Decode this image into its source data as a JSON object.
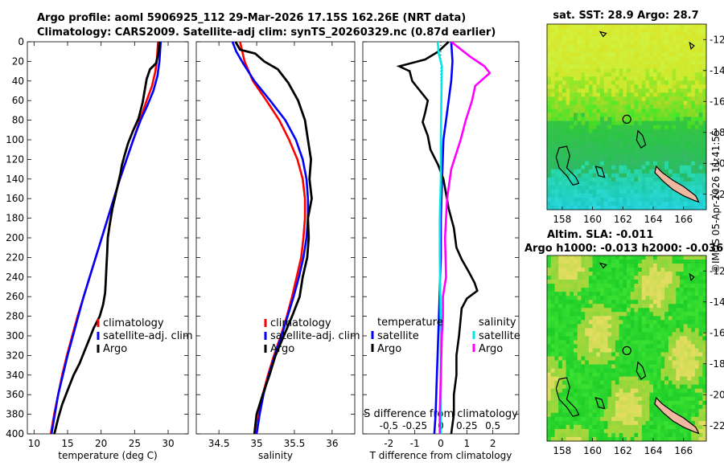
{
  "header": {
    "line1": "Argo profile: aoml 5906925_112 29-Mar-2026 17.15S 162.26E (NRT data)",
    "line2": "Climatology: CARS2009. Satellite-adj clim: synTS_20260329.nc (0.87d earlier)"
  },
  "timestamp": "©IMOS 05-Apr-2026 11:41:55",
  "colors": {
    "climatology": "#ff0000",
    "satellite": "#0000ff",
    "argo": "#000000",
    "sat_salinity": "#00e6e6",
    "argo_salinity": "#ff00ff"
  },
  "chart_data": [
    {
      "type": "line",
      "id": "temperature",
      "xlabel": "temperature (deg C)",
      "ylabel": "",
      "xlim": [
        9,
        33
      ],
      "ylim": [
        0,
        400
      ],
      "xticks": [
        10,
        15,
        20,
        25,
        30
      ],
      "yticks": [
        0,
        20,
        40,
        60,
        80,
        100,
        120,
        140,
        160,
        180,
        200,
        220,
        240,
        260,
        280,
        300,
        320,
        340,
        360,
        380,
        400
      ],
      "legend": [
        "climatology",
        "satellite-adj. clim",
        "Argo"
      ],
      "series": [
        {
          "name": "climatology",
          "color": "red",
          "points": [
            [
              28.5,
              0
            ],
            [
              28.3,
              20
            ],
            [
              28.1,
              30
            ],
            [
              27.6,
              45
            ],
            [
              26.8,
              60
            ],
            [
              25.8,
              80
            ],
            [
              24.8,
              100
            ],
            [
              23.8,
              120
            ],
            [
              22.8,
              140
            ],
            [
              21.9,
              160
            ],
            [
              21.0,
              180
            ],
            [
              20.1,
              200
            ],
            [
              19.2,
              220
            ],
            [
              18.3,
              240
            ],
            [
              17.4,
              260
            ],
            [
              16.5,
              280
            ],
            [
              15.7,
              300
            ],
            [
              14.9,
              320
            ],
            [
              14.2,
              340
            ],
            [
              13.6,
              360
            ],
            [
              13.0,
              380
            ],
            [
              12.5,
              400
            ]
          ]
        },
        {
          "name": "satellite-adj. clim",
          "color": "blue",
          "points": [
            [
              28.9,
              0
            ],
            [
              28.7,
              20
            ],
            [
              28.4,
              35
            ],
            [
              27.8,
              50
            ],
            [
              26.9,
              65
            ],
            [
              25.9,
              80
            ],
            [
              24.8,
              100
            ],
            [
              23.8,
              120
            ],
            [
              22.8,
              140
            ],
            [
              21.9,
              160
            ],
            [
              21.0,
              180
            ],
            [
              20.1,
              200
            ],
            [
              19.2,
              220
            ],
            [
              18.3,
              240
            ],
            [
              17.4,
              260
            ],
            [
              16.6,
              280
            ],
            [
              15.8,
              300
            ],
            [
              15.0,
              320
            ],
            [
              14.3,
              340
            ],
            [
              13.6,
              360
            ],
            [
              13.1,
              380
            ],
            [
              12.6,
              400
            ]
          ]
        },
        {
          "name": "Argo",
          "color": "black",
          "points": [
            [
              28.7,
              0
            ],
            [
              28.6,
              10
            ],
            [
              28.2,
              22
            ],
            [
              27.3,
              28
            ],
            [
              26.8,
              38
            ],
            [
              26.5,
              50
            ],
            [
              26.2,
              62
            ],
            [
              25.6,
              78
            ],
            [
              24.7,
              92
            ],
            [
              24.0,
              104
            ],
            [
              23.5,
              116
            ],
            [
              23.1,
              126
            ],
            [
              22.9,
              134
            ],
            [
              22.5,
              146
            ],
            [
              22.1,
              158
            ],
            [
              21.7,
              170
            ],
            [
              21.3,
              186
            ],
            [
              21.0,
              200
            ],
            [
              20.9,
              216
            ],
            [
              20.8,
              230
            ],
            [
              20.7,
              244
            ],
            [
              20.6,
              256
            ],
            [
              20.3,
              268
            ],
            [
              19.8,
              280
            ],
            [
              18.9,
              292
            ],
            [
              18.2,
              304
            ],
            [
              17.5,
              316
            ],
            [
              16.8,
              328
            ],
            [
              15.9,
              340
            ],
            [
              15.1,
              354
            ],
            [
              14.2,
              370
            ],
            [
              13.6,
              384
            ],
            [
              13.1,
              398
            ],
            [
              13.0,
              400
            ]
          ]
        }
      ]
    },
    {
      "type": "line",
      "id": "salinity",
      "xlabel": "salinity",
      "ylabel": "",
      "xlim": [
        34.2,
        36.3
      ],
      "ylim": [
        0,
        400
      ],
      "xticks": [
        34.5,
        35,
        35.5,
        36
      ],
      "yticks": [],
      "legend": [
        "climatology",
        "satellite-adj. clim",
        "Argo"
      ],
      "series": [
        {
          "name": "climatology",
          "color": "red",
          "points": [
            [
              34.78,
              0
            ],
            [
              34.84,
              20
            ],
            [
              34.95,
              40
            ],
            [
              35.13,
              60
            ],
            [
              35.3,
              80
            ],
            [
              35.43,
              100
            ],
            [
              35.54,
              120
            ],
            [
              35.61,
              140
            ],
            [
              35.64,
              160
            ],
            [
              35.64,
              180
            ],
            [
              35.62,
              200
            ],
            [
              35.59,
              220
            ],
            [
              35.53,
              240
            ],
            [
              35.47,
              260
            ],
            [
              35.4,
              280
            ],
            [
              35.32,
              300
            ],
            [
              35.23,
              320
            ],
            [
              35.15,
              340
            ],
            [
              35.08,
              360
            ],
            [
              35.03,
              380
            ],
            [
              35.0,
              400
            ]
          ]
        },
        {
          "name": "satellite-adj. clim",
          "color": "blue",
          "points": [
            [
              34.68,
              0
            ],
            [
              34.73,
              10
            ],
            [
              34.82,
              22
            ],
            [
              34.97,
              40
            ],
            [
              35.18,
              60
            ],
            [
              35.38,
              80
            ],
            [
              35.52,
              100
            ],
            [
              35.61,
              120
            ],
            [
              35.66,
              140
            ],
            [
              35.68,
              160
            ],
            [
              35.68,
              180
            ],
            [
              35.66,
              200
            ],
            [
              35.62,
              220
            ],
            [
              35.56,
              240
            ],
            [
              35.49,
              260
            ],
            [
              35.41,
              280
            ],
            [
              35.33,
              300
            ],
            [
              35.24,
              320
            ],
            [
              35.16,
              340
            ],
            [
              35.09,
              360
            ],
            [
              35.04,
              380
            ],
            [
              35.0,
              400
            ]
          ]
        },
        {
          "name": "Argo",
          "color": "black",
          "points": [
            [
              34.72,
              0
            ],
            [
              34.78,
              8
            ],
            [
              34.98,
              12
            ],
            [
              35.1,
              20
            ],
            [
              35.28,
              28
            ],
            [
              35.42,
              42
            ],
            [
              35.55,
              60
            ],
            [
              35.64,
              80
            ],
            [
              35.68,
              100
            ],
            [
              35.72,
              120
            ],
            [
              35.7,
              140
            ],
            [
              35.73,
              160
            ],
            [
              35.68,
              180
            ],
            [
              35.69,
              200
            ],
            [
              35.67,
              220
            ],
            [
              35.61,
              240
            ],
            [
              35.57,
              260
            ],
            [
              35.47,
              280
            ],
            [
              35.36,
              300
            ],
            [
              35.25,
              320
            ],
            [
              35.17,
              340
            ],
            [
              35.08,
              360
            ],
            [
              35.0,
              380
            ],
            [
              34.97,
              400
            ]
          ]
        }
      ]
    },
    {
      "type": "line",
      "id": "differences",
      "xlabel": "T difference from climatology",
      "xlabel_top": "S difference from climatology",
      "xlim": [
        -3,
        3
      ],
      "xticks": [
        -2,
        -1,
        0,
        1,
        2
      ],
      "x2lim": [
        -0.75,
        0.75
      ],
      "x2ticks": [
        -0.5,
        -0.25,
        0,
        0.25,
        0.5
      ],
      "ylim": [
        0,
        400
      ],
      "legend": {
        "temperature_title": "temperature",
        "salinity_title": "salinity",
        "entries": [
          "satellite",
          "Argo",
          "satellite",
          "Argo"
        ]
      },
      "series": [
        {
          "name": "temperature satellite",
          "color": "blue",
          "axis": "T",
          "points": [
            [
              0.4,
              0
            ],
            [
              0.45,
              20
            ],
            [
              0.4,
              40
            ],
            [
              0.3,
              60
            ],
            [
              0.2,
              80
            ],
            [
              0.1,
              100
            ],
            [
              0.05,
              140
            ],
            [
              0.0,
              180
            ],
            [
              0.0,
              220
            ],
            [
              -0.05,
              260
            ],
            [
              -0.1,
              300
            ],
            [
              -0.15,
              340
            ],
            [
              -0.2,
              380
            ],
            [
              -0.25,
              400
            ]
          ]
        },
        {
          "name": "temperature Argo",
          "color": "black",
          "axis": "T",
          "points": [
            [
              0.3,
              0
            ],
            [
              -0.1,
              10
            ],
            [
              -0.6,
              18
            ],
            [
              -1.6,
              25
            ],
            [
              -1.2,
              30
            ],
            [
              -1.1,
              40
            ],
            [
              -0.8,
              50
            ],
            [
              -0.5,
              60
            ],
            [
              -0.6,
              72
            ],
            [
              -0.7,
              82
            ],
            [
              -0.5,
              96
            ],
            [
              -0.4,
              110
            ],
            [
              -0.1,
              126
            ],
            [
              0.1,
              140
            ],
            [
              0.3,
              170
            ],
            [
              0.5,
              190
            ],
            [
              0.6,
              210
            ],
            [
              0.8,
              222
            ],
            [
              1.1,
              236
            ],
            [
              1.3,
              246
            ],
            [
              1.4,
              254
            ],
            [
              1.0,
              262
            ],
            [
              0.8,
              272
            ],
            [
              0.7,
              300
            ],
            [
              0.6,
              320
            ],
            [
              0.6,
              340
            ],
            [
              0.5,
              360
            ],
            [
              0.5,
              380
            ],
            [
              0.4,
              400
            ]
          ]
        },
        {
          "name": "salinity satellite",
          "color": "cyan",
          "axis": "S",
          "points": [
            [
              -0.03,
              0
            ],
            [
              -0.02,
              12
            ],
            [
              0.01,
              25
            ],
            [
              0.005,
              60
            ],
            [
              0.0,
              100
            ],
            [
              0.0,
              140
            ],
            [
              -0.01,
              180
            ],
            [
              -0.01,
              220
            ],
            [
              -0.005,
              260
            ],
            [
              0.0,
              300
            ],
            [
              0.0,
              340
            ],
            [
              0.0,
              380
            ],
            [
              0.0,
              400
            ]
          ]
        },
        {
          "name": "salinity Argo",
          "color": "magenta",
          "axis": "S",
          "points": [
            [
              0.1,
              0
            ],
            [
              0.28,
              15
            ],
            [
              0.42,
              25
            ],
            [
              0.47,
              32
            ],
            [
              0.33,
              45
            ],
            [
              0.3,
              60
            ],
            [
              0.24,
              80
            ],
            [
              0.19,
              100
            ],
            [
              0.1,
              130
            ],
            [
              0.06,
              160
            ],
            [
              0.04,
              200
            ],
            [
              0.05,
              240
            ],
            [
              0.02,
              260
            ],
            [
              0.02,
              280
            ],
            [
              0.01,
              300
            ],
            [
              0.0,
              340
            ],
            [
              -0.01,
              380
            ],
            [
              -0.01,
              400
            ]
          ]
        }
      ]
    },
    {
      "type": "heatmap",
      "id": "sst-map",
      "title": "sat. SST: 28.9 Argo: 28.7",
      "xticks": [
        158,
        160,
        162,
        164,
        166
      ],
      "yticks": [
        -12,
        -14,
        -16,
        -18,
        -20,
        -22
      ],
      "xlim": [
        157,
        167.5
      ],
      "ylim": [
        -23,
        -11
      ],
      "float_position": [
        162.26,
        -17.15
      ]
    },
    {
      "type": "heatmap",
      "id": "sla-map",
      "title_line1": "Altim. SLA: -0.011",
      "title_line2": "Argo h1000: -0.013 h2000: -0.036",
      "xticks": [
        158,
        160,
        162,
        164,
        166
      ],
      "yticks": [
        -12,
        -14,
        -16,
        -18,
        -20,
        -22
      ],
      "xlim": [
        157,
        167.5
      ],
      "ylim": [
        -23,
        -11
      ],
      "float_position": [
        162.26,
        -17.15
      ]
    }
  ]
}
